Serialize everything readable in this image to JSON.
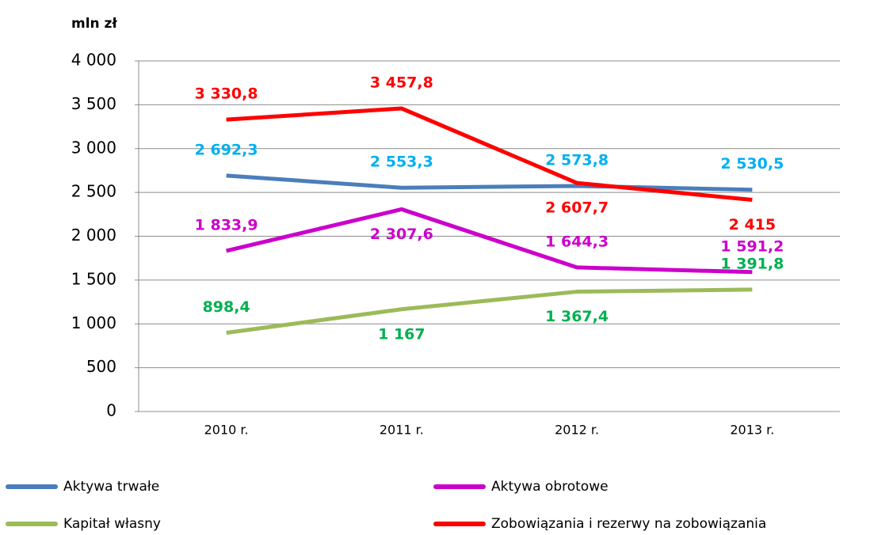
{
  "chart_data": {
    "type": "line",
    "y_axis_label": "mln zł",
    "categories": [
      "2010 r.",
      "2011 r.",
      "2012 r.",
      "2013 r."
    ],
    "series": [
      {
        "name": "Aktywa trwałe",
        "color": "#4a7ebb",
        "label_color": "#00b0f0",
        "values": [
          2692.3,
          2553.3,
          2573.8,
          2530.5
        ],
        "value_labels": [
          "2 692,3",
          "2 553,3",
          "2 573,8",
          "2 530,5"
        ]
      },
      {
        "name": "Aktywa obrotowe",
        "color": "#cc00cc",
        "label_color": "#cc00cc",
        "values": [
          1833.9,
          2307.6,
          1644.3,
          1591.2
        ],
        "value_labels": [
          "1 833,9",
          "2 307,6",
          "1 644,3",
          "1 591,2"
        ]
      },
      {
        "name": "Kapitał własny",
        "color": "#9bbb59",
        "label_color": "#00b050",
        "values": [
          898.4,
          1167,
          1367.4,
          1391.8
        ],
        "value_labels": [
          "898,4",
          "1 167",
          "1 367,4",
          "1 391,8"
        ]
      },
      {
        "name": "Zobowiązania i rezerwy na zobowiązania",
        "color": "#ff0000",
        "label_color": "#ff0000",
        "values": [
          3330.8,
          3457.8,
          2607.7,
          2415
        ],
        "value_labels": [
          "3 330,8",
          "3 457,8",
          "2 607,7",
          "2 415"
        ]
      }
    ],
    "ylim": [
      0,
      4000
    ],
    "yticks": [
      0,
      500,
      {
        "value": 1000,
        "label": "1 000"
      },
      {
        "value": 1500,
        "label": "1 500"
      },
      {
        "value": 2000,
        "label": "2 000"
      },
      {
        "value": 2500,
        "label": "2 500"
      },
      {
        "value": 3000,
        "label": "3 000"
      },
      {
        "value": 3500,
        "label": "3 500"
      },
      {
        "value": 4000,
        "label": "4 000"
      }
    ],
    "grid": true,
    "legend": "bottom"
  }
}
